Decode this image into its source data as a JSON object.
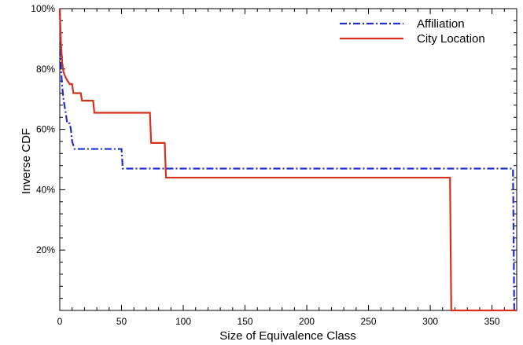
{
  "chart_data": {
    "type": "line",
    "title": "",
    "xlabel": "Size of Equivalence Class",
    "ylabel": "Inverse CDF",
    "xlim": [
      0,
      370
    ],
    "ylim": [
      0,
      100
    ],
    "x_ticks": [
      0,
      50,
      100,
      150,
      200,
      250,
      300,
      350
    ],
    "x_tick_labels": [
      "0",
      "50",
      "100",
      "150",
      "200",
      "250",
      "300",
      "350"
    ],
    "y_ticks": [
      20,
      40,
      60,
      80,
      100
    ],
    "y_tick_labels": [
      "20%",
      "40%",
      "60%",
      "80%",
      "100%"
    ],
    "grid": false,
    "legend_position": "top-right",
    "series": [
      {
        "name": "Affiliation",
        "color": "#1f2fd0",
        "style": "dash-dot",
        "points": [
          [
            0,
            100
          ],
          [
            1,
            80
          ],
          [
            2,
            74
          ],
          [
            3,
            70
          ],
          [
            5,
            65
          ],
          [
            6,
            62
          ],
          [
            8,
            62
          ],
          [
            9,
            60
          ],
          [
            10,
            56
          ],
          [
            12,
            53.5
          ],
          [
            50,
            53.5
          ],
          [
            51,
            47
          ],
          [
            367,
            47
          ],
          [
            368,
            0
          ]
        ]
      },
      {
        "name": "City Location",
        "color": "#d9301b",
        "style": "solid",
        "points": [
          [
            0,
            100
          ],
          [
            1,
            88
          ],
          [
            2,
            82
          ],
          [
            3,
            79
          ],
          [
            5,
            77
          ],
          [
            8,
            75
          ],
          [
            10,
            75
          ],
          [
            11,
            72
          ],
          [
            17,
            72
          ],
          [
            18,
            69.5
          ],
          [
            27,
            69.5
          ],
          [
            28,
            65.5
          ],
          [
            73,
            65.5
          ],
          [
            74,
            55.5
          ],
          [
            85,
            55.5
          ],
          [
            86,
            44
          ],
          [
            316,
            44
          ],
          [
            317,
            0
          ],
          [
            370,
            0
          ]
        ]
      }
    ]
  }
}
